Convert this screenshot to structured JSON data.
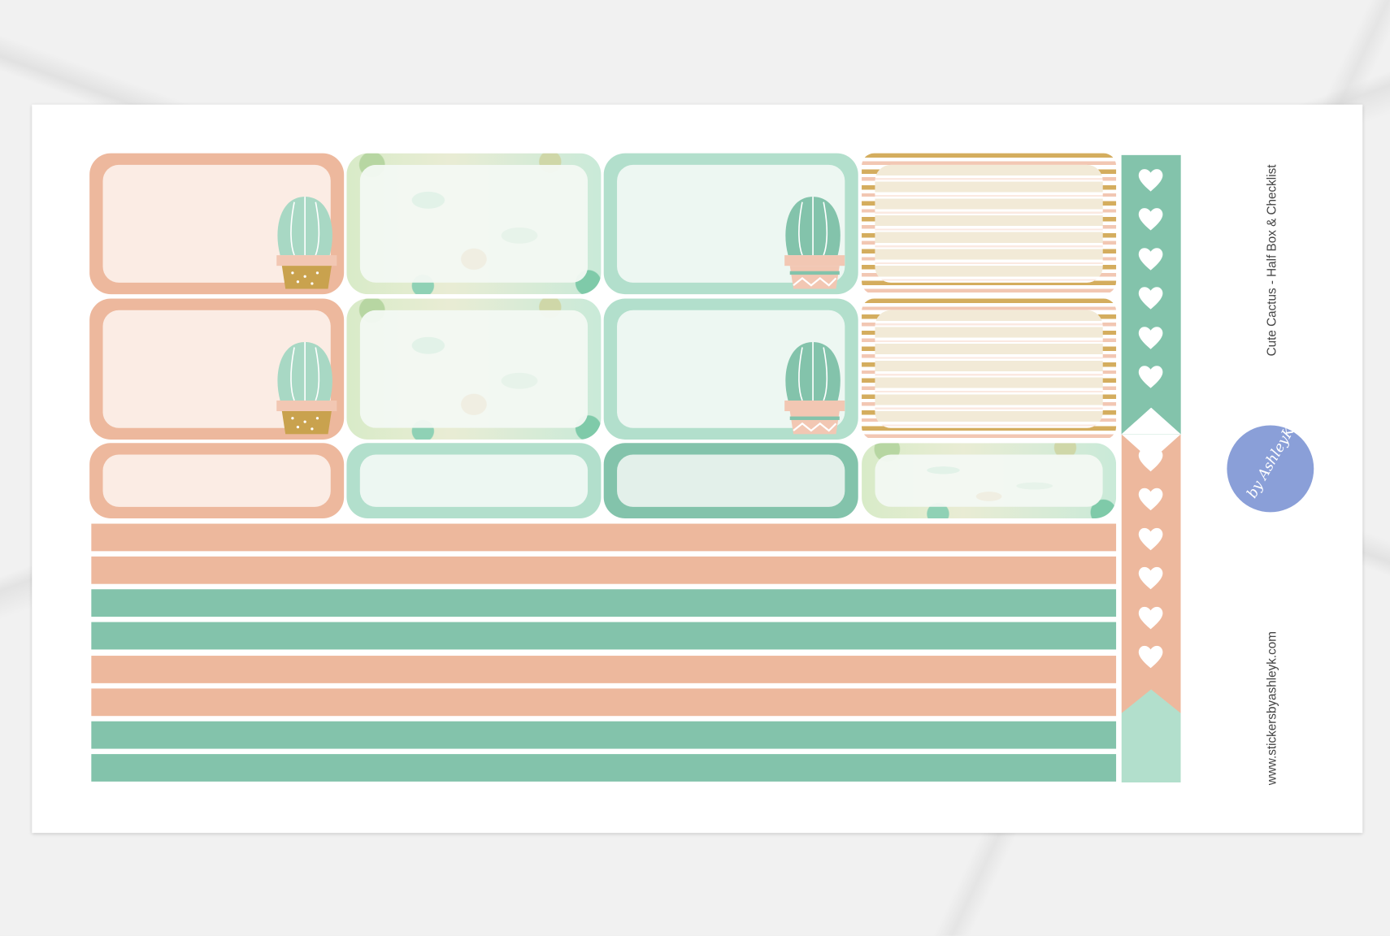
{
  "sheet": {
    "title": "Cute Cactus - Half Box & Checklist",
    "website": "www.stickersbyashleyk.com",
    "logo_text": "by AshleyK"
  },
  "colors": {
    "peach": "#edb89d",
    "green": "#83c3ab",
    "mint": "#b2dfcc",
    "gold": "#d4ad5e",
    "logo_blue": "#8a9fd8"
  },
  "stickers": {
    "half_boxes": [
      [
        "peach-cactus",
        "watercolor",
        "mint-cactus",
        "gold-stripes"
      ],
      [
        "peach-cactus",
        "watercolor",
        "mint-cactus",
        "gold-stripes"
      ],
      [
        "peach",
        "mint",
        "teal",
        "watercolor"
      ]
    ],
    "strips": [
      "peach",
      "peach",
      "green",
      "green",
      "peach",
      "peach",
      "green",
      "green"
    ],
    "checklist_icon": "heart-icon"
  }
}
